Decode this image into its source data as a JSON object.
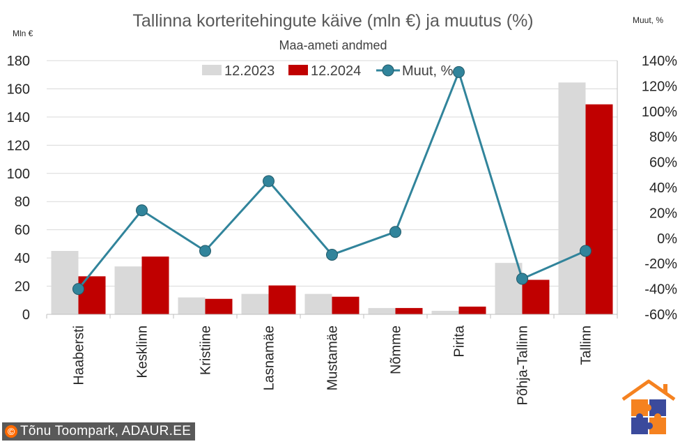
{
  "chart_data": {
    "type": "bar",
    "title": "Tallinna korteritehingute käive (mln €) ja muutus (%)",
    "subtitle": "Maa-ameti andmed",
    "ylabel": "Mln €",
    "y2label": "Muut, %",
    "ylim": [
      0,
      180
    ],
    "yticks": [
      0,
      20,
      40,
      60,
      80,
      100,
      120,
      140,
      160,
      180
    ],
    "y2lim": [
      -60,
      140
    ],
    "y2ticks": [
      -60,
      -40,
      -20,
      0,
      20,
      40,
      60,
      80,
      100,
      120,
      140
    ],
    "y2tick_labels": [
      "-60%",
      "-40%",
      "-20%",
      "0%",
      "20%",
      "40%",
      "60%",
      "80%",
      "100%",
      "120%",
      "140%"
    ],
    "categories": [
      "Haabersti",
      "Kesklinn",
      "Kristiine",
      "Lasnamäe",
      "Mustamäe",
      "Nõmme",
      "Pirita",
      "Põhja-Tallinn",
      "Tallinn"
    ],
    "series": [
      {
        "name": "12.2023",
        "kind": "bar",
        "color": "#d9d9d9",
        "values": [
          45,
          34,
          12,
          14.5,
          14.5,
          4.5,
          2.5,
          36.5,
          164.5
        ]
      },
      {
        "name": "12.2024",
        "kind": "bar",
        "color": "#c00000",
        "values": [
          27,
          41,
          11,
          20.5,
          12.5,
          4.5,
          5.5,
          24.5,
          149
        ]
      },
      {
        "name": "Muut, %",
        "kind": "line",
        "axis": "right",
        "color": "#31849b",
        "values": [
          -40,
          22,
          -10,
          45,
          -13,
          5,
          131,
          -32,
          -10
        ]
      }
    ],
    "legend_position": "top"
  },
  "footer": {
    "copyright_symbol": "©",
    "credit": "Tõnu Toompark, ADAUR.EE"
  },
  "logo": {
    "name": "ADAUR puzzle-house logo",
    "colors": [
      "#f58220",
      "#3b4a9c"
    ]
  }
}
